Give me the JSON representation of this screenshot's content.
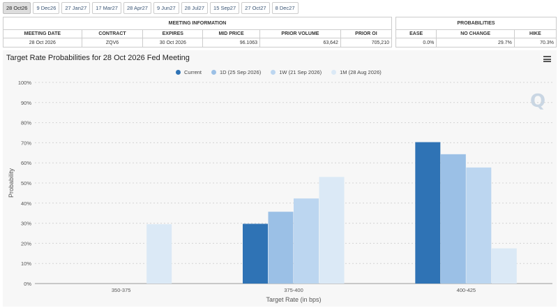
{
  "tabs": [
    "28 Oct26",
    "9 Dec26",
    "27 Jan27",
    "17 Mar27",
    "28 Apr27",
    "9 Jun27",
    "28 Jul27",
    "15 Sep27",
    "27 Oct27",
    "8 Dec27"
  ],
  "meeting_info": {
    "title": "MEETING INFORMATION",
    "headers": [
      "MEETING DATE",
      "CONTRACT",
      "EXPIRES",
      "MID PRICE",
      "PRIOR VOLUME",
      "PRIOR OI"
    ],
    "values": [
      "28 Oct 2026",
      "ZQV6",
      "30 Oct 2026",
      "96.1063",
      "63,642",
      "705,210"
    ]
  },
  "probabilities": {
    "title": "PROBABILITIES",
    "headers": [
      "EASE",
      "NO CHANGE",
      "HIKE"
    ],
    "values": [
      "0.0%",
      "29.7%",
      "70.3%"
    ]
  },
  "logo_text": "Q",
  "chart_data": {
    "type": "bar",
    "title": "Target Rate Probabilities for 28 Oct 2026 Fed Meeting",
    "xlabel": "Target Rate (in bps)",
    "ylabel": "Probability",
    "categories": [
      "350-375",
      "375-400",
      "400-425"
    ],
    "ylim": [
      0,
      100
    ],
    "yticks": [
      "0%",
      "10%",
      "20%",
      "30%",
      "40%",
      "50%",
      "60%",
      "70%",
      "80%",
      "90%",
      "100%"
    ],
    "legend_position": "top-center",
    "grid": true,
    "series": [
      {
        "name": "Current",
        "color": "#2f73b5",
        "values": [
          0,
          29.7,
          70.3
        ]
      },
      {
        "name": "1D (25 Sep 2026)",
        "color": "#9bc0e6",
        "values": [
          0,
          35.7,
          64.3
        ]
      },
      {
        "name": "1W (21 Sep 2026)",
        "color": "#bcd6f0",
        "values": [
          0,
          42.3,
          57.7
        ]
      },
      {
        "name": "1M (28 Aug 2026)",
        "color": "#dbe9f6",
        "values": [
          29.5,
          53,
          17.5
        ]
      }
    ]
  }
}
